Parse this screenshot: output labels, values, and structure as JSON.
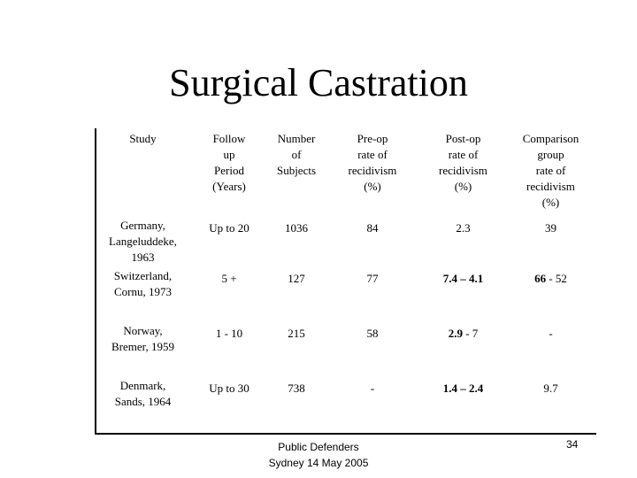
{
  "title": "Surgical Castration",
  "table": {
    "header": [
      [
        "Study"
      ],
      [
        "Follow",
        "up",
        "Period",
        "(Years)"
      ],
      [
        "Number",
        "of",
        "Subjects"
      ],
      [
        "Pre-op",
        "rate of",
        "recidivism",
        "(%)"
      ],
      [
        "Post-op",
        "rate of",
        "recidivism",
        "(%)"
      ],
      [
        "Comparison",
        "group",
        "rate of",
        "recidivism",
        "(%)"
      ]
    ],
    "rows": [
      {
        "cells": [
          {
            "lines": [
              "Germany,",
              "Langeluddeke,",
              "1963"
            ]
          },
          {
            "runs": [
              {
                "text": "Up to 20"
              }
            ]
          },
          {
            "runs": [
              {
                "text": "1036"
              }
            ]
          },
          {
            "runs": [
              {
                "text": "84"
              }
            ]
          },
          {
            "runs": [
              {
                "text": "2.3"
              }
            ]
          },
          {
            "runs": [
              {
                "text": "39"
              }
            ]
          }
        ]
      },
      {
        "cells": [
          {
            "lines": [
              "Switzerland,",
              "Cornu, 1973"
            ]
          },
          {
            "runs": [
              {
                "text": "5 +"
              }
            ]
          },
          {
            "runs": [
              {
                "text": "127"
              }
            ]
          },
          {
            "runs": [
              {
                "text": "77"
              }
            ]
          },
          {
            "runs": [
              {
                "text": "7.4 – 4.1",
                "bold": true
              }
            ]
          },
          {
            "runs": [
              {
                "text": "66",
                "bold": true
              },
              {
                "text": " - 52"
              }
            ]
          }
        ]
      },
      {
        "cells": [
          {
            "lines": [
              "Norway,",
              "Bremer, 1959"
            ]
          },
          {
            "runs": [
              {
                "text": "1 - 10"
              }
            ]
          },
          {
            "runs": [
              {
                "text": "215"
              }
            ]
          },
          {
            "runs": [
              {
                "text": "58"
              }
            ]
          },
          {
            "runs": [
              {
                "text": "2.9",
                "bold": true
              },
              {
                "text": " - 7"
              }
            ]
          },
          {
            "runs": [
              {
                "text": "-"
              }
            ]
          }
        ]
      },
      {
        "cells": [
          {
            "lines": [
              "Denmark,",
              "Sands, 1964"
            ]
          },
          {
            "runs": [
              {
                "text": "Up to 30"
              }
            ]
          },
          {
            "runs": [
              {
                "text": "738"
              }
            ]
          },
          {
            "runs": [
              {
                "text": "-"
              }
            ]
          },
          {
            "runs": [
              {
                "text": "1.4 – 2.4",
                "bold": true
              }
            ]
          },
          {
            "runs": [
              {
                "text": "9.7"
              }
            ]
          }
        ]
      }
    ]
  },
  "footer": {
    "lines": [
      "Public Defenders",
      "Sydney 14 May 2005"
    ],
    "page_number": "34"
  }
}
